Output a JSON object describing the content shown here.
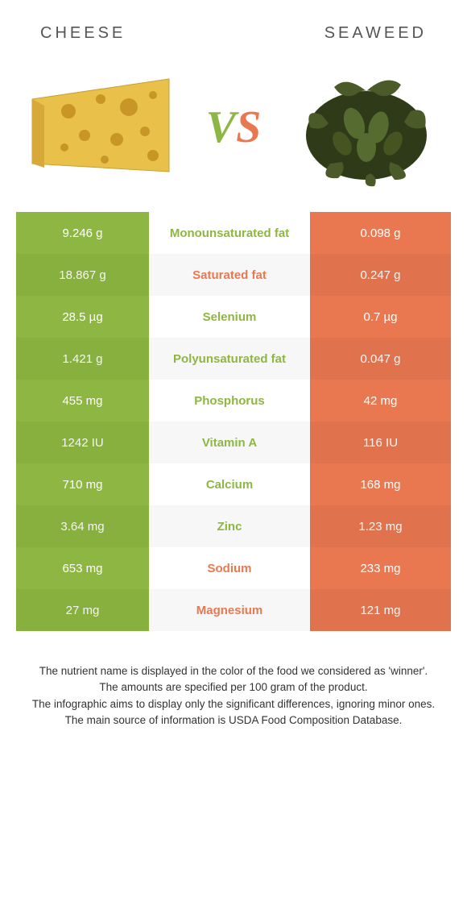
{
  "header": {
    "left": "CHEESE",
    "right": "SEAWEED",
    "vs_v": "V",
    "vs_s": "S"
  },
  "colors": {
    "left_col": "#8db742",
    "right_col": "#e97850",
    "left_text": "#8db742",
    "right_text": "#e97850",
    "mid_bg_odd": "#ffffff"
  },
  "rows": [
    {
      "left": "9.246 g",
      "mid": "Monounsaturated fat",
      "right": "0.098 g",
      "winner": "left"
    },
    {
      "left": "18.867 g",
      "mid": "Saturated fat",
      "right": "0.247 g",
      "winner": "right"
    },
    {
      "left": "28.5 µg",
      "mid": "Selenium",
      "right": "0.7 µg",
      "winner": "left"
    },
    {
      "left": "1.421 g",
      "mid": "Polyunsaturated fat",
      "right": "0.047 g",
      "winner": "left"
    },
    {
      "left": "455 mg",
      "mid": "Phosphorus",
      "right": "42 mg",
      "winner": "left"
    },
    {
      "left": "1242 IU",
      "mid": "Vitamin A",
      "right": "116 IU",
      "winner": "left"
    },
    {
      "left": "710 mg",
      "mid": "Calcium",
      "right": "168 mg",
      "winner": "left"
    },
    {
      "left": "3.64 mg",
      "mid": "Zinc",
      "right": "1.23 mg",
      "winner": "left"
    },
    {
      "left": "653 mg",
      "mid": "Sodium",
      "right": "233 mg",
      "winner": "right"
    },
    {
      "left": "27 mg",
      "mid": "Magnesium",
      "right": "121 mg",
      "winner": "right"
    }
  ],
  "footnotes": [
    "The nutrient name is displayed in the color of the food we considered as 'winner'.",
    "The amounts are specified per 100 gram of the product.",
    "The infographic aims to display only the significant differences, ignoring minor ones.",
    "The main source of information is USDA Food Composition Database."
  ]
}
